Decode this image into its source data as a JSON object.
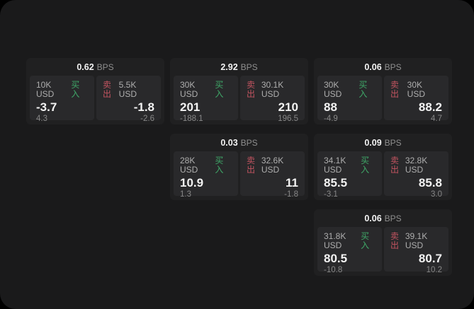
{
  "labels": {
    "bps_unit": "BPS",
    "buy": "买入",
    "sell": "卖出"
  },
  "colors": {
    "surface": "#1a1a1b",
    "card": "#202021",
    "panel": "#29292b",
    "buy": "#3fa868",
    "sell": "#c25460"
  },
  "cards": [
    {
      "bps": "0.62",
      "buy": {
        "amount": "10K USD",
        "price": "-3.7",
        "delta": "4.3"
      },
      "sell": {
        "amount": "5.5K USD",
        "price": "-1.8",
        "delta": "-2.6"
      }
    },
    {
      "bps": "2.92",
      "buy": {
        "amount": "30K USD",
        "price": "201",
        "delta": "-188.1"
      },
      "sell": {
        "amount": "30.1K USD",
        "price": "210",
        "delta": "196.5"
      }
    },
    {
      "bps": "0.06",
      "buy": {
        "amount": "30K USD",
        "price": "88",
        "delta": "-4.9"
      },
      "sell": {
        "amount": "30K USD",
        "price": "88.2",
        "delta": "4.7"
      }
    },
    {
      "bps": "0.03",
      "buy": {
        "amount": "28K USD",
        "price": "10.9",
        "delta": "1.3"
      },
      "sell": {
        "amount": "32.6K USD",
        "price": "11",
        "delta": "-1.8"
      }
    },
    {
      "bps": "0.09",
      "buy": {
        "amount": "34.1K USD",
        "price": "85.5",
        "delta": "-3.1"
      },
      "sell": {
        "amount": "32.8K USD",
        "price": "85.8",
        "delta": "3.0"
      }
    },
    {
      "bps": "0.06",
      "buy": {
        "amount": "31.8K USD",
        "price": "80.5",
        "delta": "-10.8"
      },
      "sell": {
        "amount": "39.1K USD",
        "price": "80.7",
        "delta": "10.2"
      }
    }
  ]
}
